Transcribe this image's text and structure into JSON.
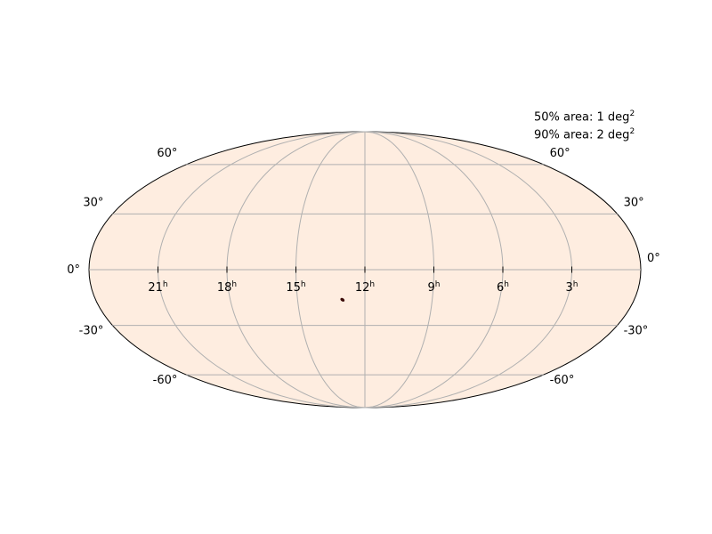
{
  "chart_data": {
    "type": "scatter",
    "projection": "mollweide",
    "grid": true,
    "ra_tick_labels": [
      {
        "ra_hours": 21,
        "label": "21",
        "sup": "h"
      },
      {
        "ra_hours": 18,
        "label": "18",
        "sup": "h"
      },
      {
        "ra_hours": 15,
        "label": "15",
        "sup": "h"
      },
      {
        "ra_hours": 12,
        "label": "12",
        "sup": "h"
      },
      {
        "ra_hours": 9,
        "label": "9",
        "sup": "h"
      },
      {
        "ra_hours": 6,
        "label": "6",
        "sup": "h"
      },
      {
        "ra_hours": 3,
        "label": "3",
        "sup": "h"
      }
    ],
    "dec_tick_labels": [
      {
        "dec": 60,
        "label": "60°"
      },
      {
        "dec": 30,
        "label": "30°"
      },
      {
        "dec": 0,
        "label": "0°"
      },
      {
        "dec": -30,
        "label": "-30°"
      },
      {
        "dec": -60,
        "label": "-60°"
      }
    ],
    "localization": {
      "ra_hours": 13.0,
      "dec": -16.0
    },
    "colors": {
      "sky_fill": "#feede0",
      "grid": "#b0b0b0",
      "outline": "#000000",
      "blob": "#3a0a08"
    }
  },
  "annotations": {
    "area50_text": "50% area: 1 deg",
    "area90_text": "90% area: 2 deg",
    "area_unit_sup": "2"
  }
}
